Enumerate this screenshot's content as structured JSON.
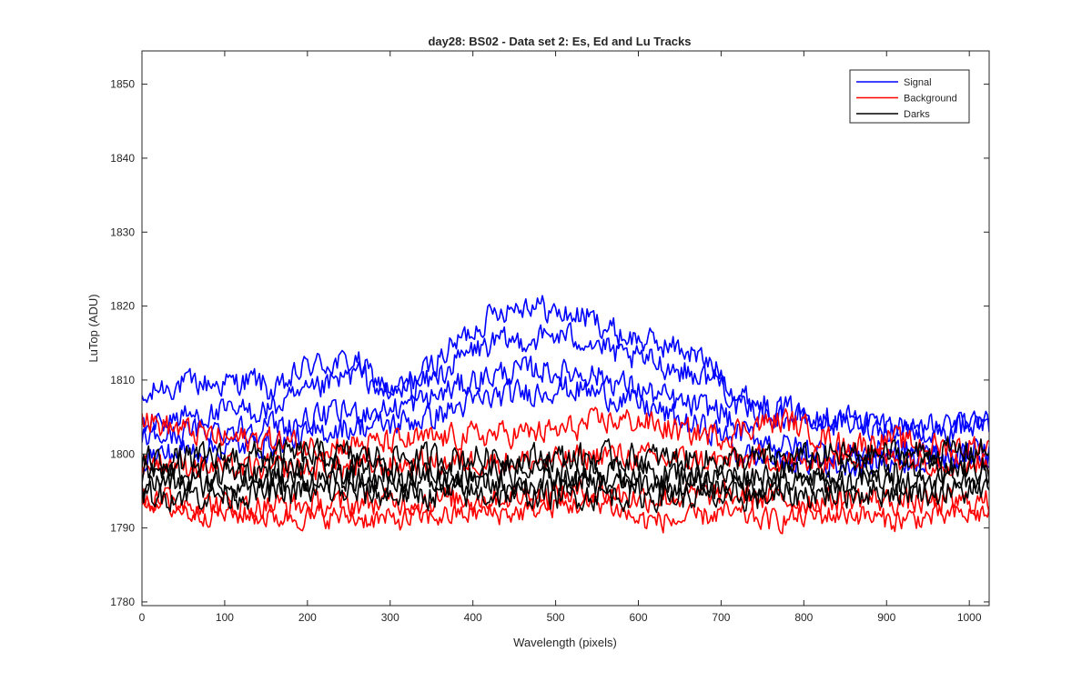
{
  "chart_data": {
    "type": "line",
    "title": "day28: BS02 - Data set 2: Es, Ed and Lu Tracks",
    "xlabel": "Wavelength (pixels)",
    "ylabel": "LuTop (ADU)",
    "xlim": [
      0,
      1024
    ],
    "ylim": [
      1779.5,
      1854.5
    ],
    "xticks": [
      "0",
      "100",
      "200",
      "300",
      "400",
      "500",
      "600",
      "700",
      "800",
      "900",
      "1000"
    ],
    "yticks": [
      "1780",
      "1790",
      "1800",
      "1810",
      "1820",
      "1830",
      "1840",
      "1850"
    ],
    "grid": false,
    "legend_position": "top-right",
    "sample_step_pixels": 2,
    "series": [
      {
        "name": "Signal",
        "color": "#0000ff",
        "group": "Signal",
        "anchors_x": [
          0,
          20,
          60,
          100,
          140,
          160,
          200,
          260,
          300,
          340,
          380,
          430,
          470,
          500,
          540,
          580,
          620,
          660,
          700,
          720,
          760,
          800,
          850,
          900,
          960,
          1024
        ],
        "anchors_y": [
          1806.5,
          1809,
          1809.5,
          1809.5,
          1810,
          1808,
          1812,
          1812.5,
          1808,
          1811,
          1815,
          1819.5,
          1820.5,
          1819,
          1818.5,
          1816,
          1815,
          1814,
          1811,
          1808,
          1806.5,
          1805.5,
          1805,
          1804,
          1803.5,
          1804
        ],
        "noise": 1.0
      },
      {
        "name": "Signal",
        "color": "#0000ff",
        "group": "Signal",
        "anchors_x": [
          0,
          50,
          100,
          150,
          200,
          260,
          300,
          350,
          400,
          430,
          470,
          500,
          540,
          580,
          620,
          660,
          700,
          720,
          780,
          850,
          900,
          960,
          1024
        ],
        "anchors_y": [
          1804,
          1805,
          1805.5,
          1806,
          1808,
          1811,
          1808,
          1810,
          1814,
          1815,
          1815.5,
          1816,
          1815.5,
          1813,
          1812.5,
          1811,
          1810,
          1806,
          1805,
          1804,
          1803.5,
          1803,
          1804
        ],
        "noise": 1.0
      },
      {
        "name": "Signal",
        "color": "#0000ff",
        "group": "Signal",
        "anchors_x": [
          0,
          60,
          120,
          180,
          240,
          300,
          350,
          400,
          440,
          480,
          500,
          540,
          580,
          620,
          660,
          700,
          720,
          780,
          850,
          900,
          960,
          1024
        ],
        "anchors_y": [
          1802,
          1803,
          1803.5,
          1804,
          1805.5,
          1806,
          1807.5,
          1810,
          1811,
          1811.5,
          1811,
          1811,
          1809.5,
          1808,
          1806.5,
          1806,
          1803,
          1801,
          1800,
          1800.5,
          1800,
          1800.5
        ],
        "noise": 1.0
      },
      {
        "name": "Signal",
        "color": "#0000ff",
        "group": "Signal",
        "anchors_x": [
          0,
          60,
          120,
          180,
          240,
          300,
          350,
          400,
          440,
          480,
          500,
          540,
          580,
          620,
          660,
          700,
          720,
          780,
          850,
          900,
          960,
          1024
        ],
        "anchors_y": [
          1799.5,
          1800.5,
          1801,
          1802,
          1803.5,
          1804,
          1805,
          1807,
          1808,
          1808.5,
          1809,
          1808.5,
          1807.5,
          1806,
          1804,
          1803,
          1800,
          1799,
          1798.5,
          1799,
          1799.5,
          1800
        ],
        "noise": 1.0
      },
      {
        "name": "Background",
        "color": "#ff0000",
        "group": "Background",
        "anchors_x": [
          0,
          20,
          60,
          100,
          150,
          200,
          300,
          400,
          500,
          560,
          600,
          650,
          700,
          740,
          780,
          850,
          900,
          960,
          1024
        ],
        "anchors_y": [
          1805,
          1804,
          1803,
          1802,
          1802,
          1801,
          1801.5,
          1802.5,
          1803,
          1804.5,
          1804.5,
          1803,
          1802.5,
          1804,
          1804.5,
          1801,
          1802,
          1801,
          1801
        ],
        "noise": 1.0
      },
      {
        "name": "Background",
        "color": "#ff0000",
        "group": "Background",
        "anchors_x": [
          0,
          60,
          120,
          200,
          300,
          400,
          500,
          560,
          600,
          700,
          760,
          800,
          860,
          920,
          1024
        ],
        "anchors_y": [
          1799,
          1798.5,
          1798,
          1798,
          1798.5,
          1799,
          1799,
          1800,
          1799.5,
          1799,
          1799.5,
          1798.5,
          1800,
          1799.5,
          1798.5
        ],
        "noise": 1.0
      },
      {
        "name": "Background",
        "color": "#ff0000",
        "group": "Background",
        "anchors_x": [
          0,
          60,
          120,
          200,
          300,
          400,
          500,
          560,
          600,
          700,
          760,
          800,
          860,
          920,
          1024
        ],
        "anchors_y": [
          1794,
          1793.5,
          1793,
          1793,
          1793.5,
          1794,
          1794.5,
          1795,
          1794,
          1794.5,
          1794,
          1793.5,
          1794,
          1793.5,
          1793.5
        ],
        "noise": 1.0
      },
      {
        "name": "Background",
        "color": "#ff0000",
        "group": "Background",
        "anchors_x": [
          0,
          60,
          100,
          150,
          200,
          250,
          300,
          350,
          400,
          450,
          500,
          560,
          600,
          650,
          700,
          760,
          800,
          860,
          900,
          960,
          1024
        ],
        "anchors_y": [
          1794,
          1792,
          1792,
          1791.5,
          1791.5,
          1791.5,
          1791,
          1791.5,
          1792,
          1792,
          1793,
          1793.5,
          1791,
          1791,
          1792,
          1791,
          1791.5,
          1792,
          1791,
          1791.5,
          1792
        ],
        "noise": 0.9
      },
      {
        "name": "Darks",
        "color": "#000000",
        "group": "Darks",
        "anchors_x": [
          0,
          100,
          200,
          300,
          400,
          500,
          600,
          700,
          800,
          900,
          1024
        ],
        "anchors_y": [
          1799,
          1799.5,
          1800,
          1799.5,
          1799.5,
          1799.5,
          1799.5,
          1799,
          1799.5,
          1800,
          1800.5
        ],
        "noise": 1.1
      },
      {
        "name": "Darks",
        "color": "#000000",
        "group": "Darks",
        "anchors_x": [
          0,
          100,
          200,
          300,
          400,
          500,
          600,
          700,
          800,
          900,
          1024
        ],
        "anchors_y": [
          1797.5,
          1797.5,
          1798,
          1797.5,
          1797.5,
          1797.5,
          1797.5,
          1797,
          1797.5,
          1798,
          1798
        ],
        "noise": 1.1
      },
      {
        "name": "Darks",
        "color": "#000000",
        "group": "Darks",
        "anchors_x": [
          0,
          100,
          200,
          300,
          400,
          500,
          600,
          700,
          800,
          900,
          1024
        ],
        "anchors_y": [
          1796,
          1796,
          1796.5,
          1796,
          1796,
          1796,
          1796,
          1795.5,
          1796,
          1796.5,
          1796.5
        ],
        "noise": 1.1
      },
      {
        "name": "Darks",
        "color": "#000000",
        "group": "Darks",
        "anchors_x": [
          0,
          100,
          200,
          300,
          400,
          500,
          600,
          700,
          800,
          900,
          1024
        ],
        "anchors_y": [
          1794.5,
          1794.5,
          1795,
          1794.5,
          1794.5,
          1794.5,
          1794.5,
          1794,
          1794.5,
          1795,
          1795
        ],
        "noise": 1.1
      }
    ],
    "legend": [
      {
        "label": "Signal",
        "color": "#0000ff"
      },
      {
        "label": "Background",
        "color": "#ff0000"
      },
      {
        "label": "Darks",
        "color": "#000000"
      }
    ]
  }
}
